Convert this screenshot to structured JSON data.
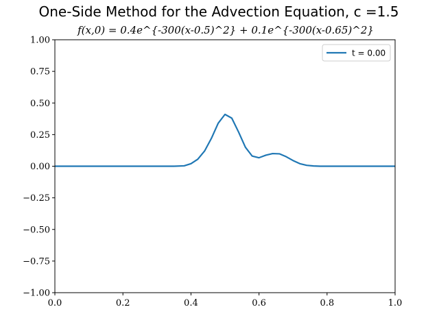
{
  "chart_data": {
    "type": "line",
    "title": "One-Side Method for the Advection Equation, c =1.5",
    "subtitle": "f(x,0) = 0.4e^{-300(x-0.5)^2} + 0.1e^{-300(x-0.65)^2}",
    "xlabel": "",
    "ylabel": "",
    "xlim": [
      0.0,
      1.0
    ],
    "ylim": [
      -1.0,
      1.0
    ],
    "xticks": [
      0.0,
      0.2,
      0.4,
      0.6,
      0.8,
      1.0
    ],
    "xtick_labels": [
      "0.0",
      "0.2",
      "0.4",
      "0.6",
      "0.8",
      "1.0"
    ],
    "yticks": [
      -1.0,
      -0.75,
      -0.5,
      -0.25,
      0.0,
      0.25,
      0.5,
      0.75,
      1.0
    ],
    "ytick_labels": [
      "−1.00",
      "−0.75",
      "−0.50",
      "−0.25",
      "0.00",
      "0.25",
      "0.50",
      "0.75",
      "1.00"
    ],
    "grid": false,
    "legend_position": "top-right",
    "series": [
      {
        "name": "t = 0.00",
        "color": "#1f77b4",
        "x": [
          0.0,
          0.05,
          0.1,
          0.15,
          0.2,
          0.25,
          0.3,
          0.35,
          0.38,
          0.4,
          0.42,
          0.44,
          0.46,
          0.48,
          0.5,
          0.52,
          0.54,
          0.56,
          0.58,
          0.6,
          0.62,
          0.64,
          0.66,
          0.68,
          0.7,
          0.72,
          0.74,
          0.76,
          0.78,
          0.8,
          0.85,
          0.9,
          0.95,
          1.0
        ],
        "y": [
          0.0,
          0.0,
          0.0,
          0.0,
          0.0,
          0.0,
          0.0,
          0.0,
          0.003,
          0.02,
          0.055,
          0.12,
          0.22,
          0.34,
          0.41,
          0.38,
          0.27,
          0.15,
          0.08,
          0.067,
          0.087,
          0.1,
          0.098,
          0.075,
          0.045,
          0.02,
          0.007,
          0.002,
          0.0,
          0.0,
          0.0,
          0.0,
          0.0,
          0.0
        ]
      }
    ]
  }
}
